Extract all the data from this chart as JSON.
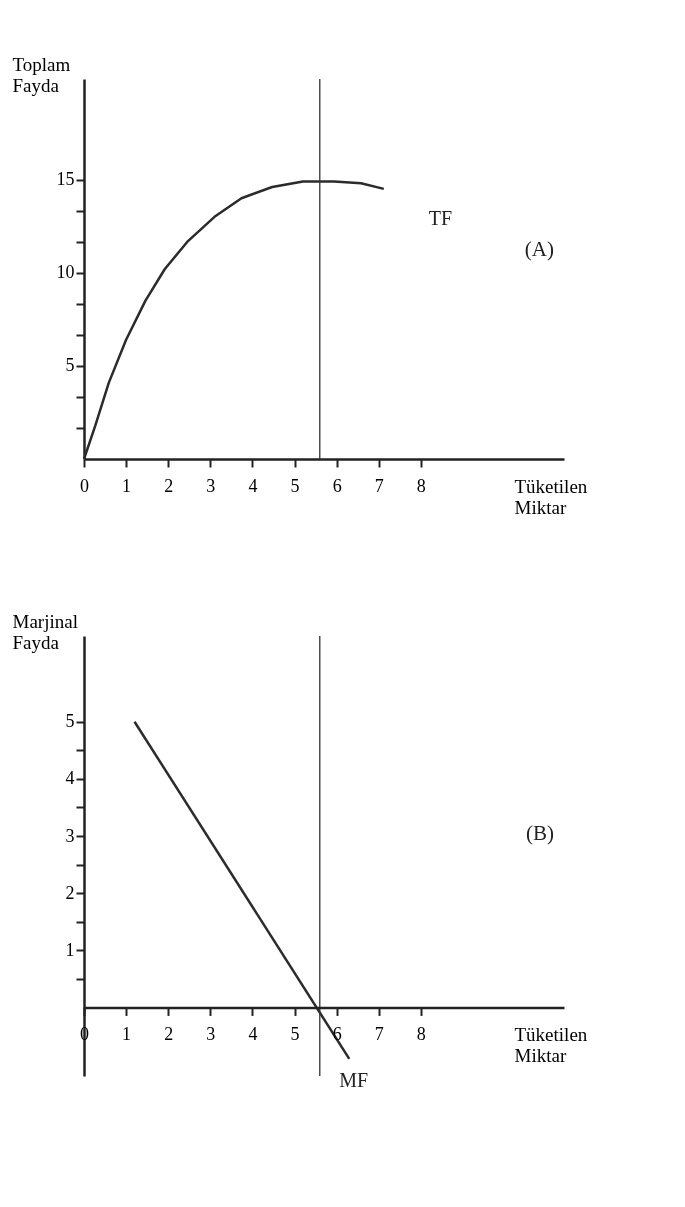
{
  "chart_data": [
    {
      "type": "line",
      "xlabel": "Tüketilen Miktar",
      "ylabel": "Toplam Fayda",
      "annotations": [
        "(A)"
      ],
      "xlim": [
        0,
        11.4
      ],
      "ylim": [
        0,
        20.4
      ],
      "xticks": [
        0,
        1,
        2,
        3,
        4,
        5,
        6,
        7,
        8
      ],
      "yticks": [
        {
          "value": 1.67,
          "label": null
        },
        {
          "value": 3.33,
          "label": null
        },
        5,
        {
          "value": 6.67,
          "label": null
        },
        {
          "value": 8.33,
          "label": null
        },
        10,
        {
          "value": 11.67,
          "label": null
        },
        {
          "value": 13.33,
          "label": null
        },
        15
      ],
      "grid": false,
      "marker": "none",
      "line_style": "solid",
      "ref_lines": [
        {
          "axis": "x",
          "value": 5.6,
          "label": null,
          "color": "#333333"
        }
      ],
      "series": [
        {
          "name": "TF",
          "color": "#2b2b2b",
          "x": [
            0,
            0.27,
            0.59,
            1.0,
            1.46,
            1.92,
            2.47,
            3.1,
            3.74,
            4.47,
            5.2,
            5.94,
            6.58,
            7.12
          ],
          "values": [
            0,
            1.8,
            4.1,
            6.4,
            8.5,
            10.2,
            11.7,
            13.0,
            14.0,
            14.6,
            14.9,
            14.9,
            14.8,
            14.5
          ]
        }
      ]
    },
    {
      "type": "line",
      "xlabel": "Tüketilen Miktar",
      "ylabel": "Marjinal Fayda",
      "annotations": [
        "(B)"
      ],
      "xlim": [
        0,
        11.4
      ],
      "ylim": [
        -1.2,
        6.5
      ],
      "xticks": [
        0,
        1,
        2,
        3,
        4,
        5,
        6,
        7,
        8
      ],
      "yticks": [
        {
          "value": 0.5,
          "label": null
        },
        1,
        {
          "value": 1.5,
          "label": null
        },
        2,
        {
          "value": 2.5,
          "label": null
        },
        3,
        {
          "value": 3.5,
          "label": null
        },
        4,
        {
          "value": 4.5,
          "label": null
        },
        5
      ],
      "grid": false,
      "marker": "none",
      "line_style": "solid",
      "ref_lines": [
        {
          "axis": "x",
          "value": 5.6,
          "label": null,
          "color": "#333333"
        }
      ],
      "series": [
        {
          "name": "MF",
          "color": "#2b2b2b",
          "x": [
            1.2,
            6.3
          ],
          "values": [
            5.0,
            -0.9
          ]
        }
      ]
    }
  ]
}
